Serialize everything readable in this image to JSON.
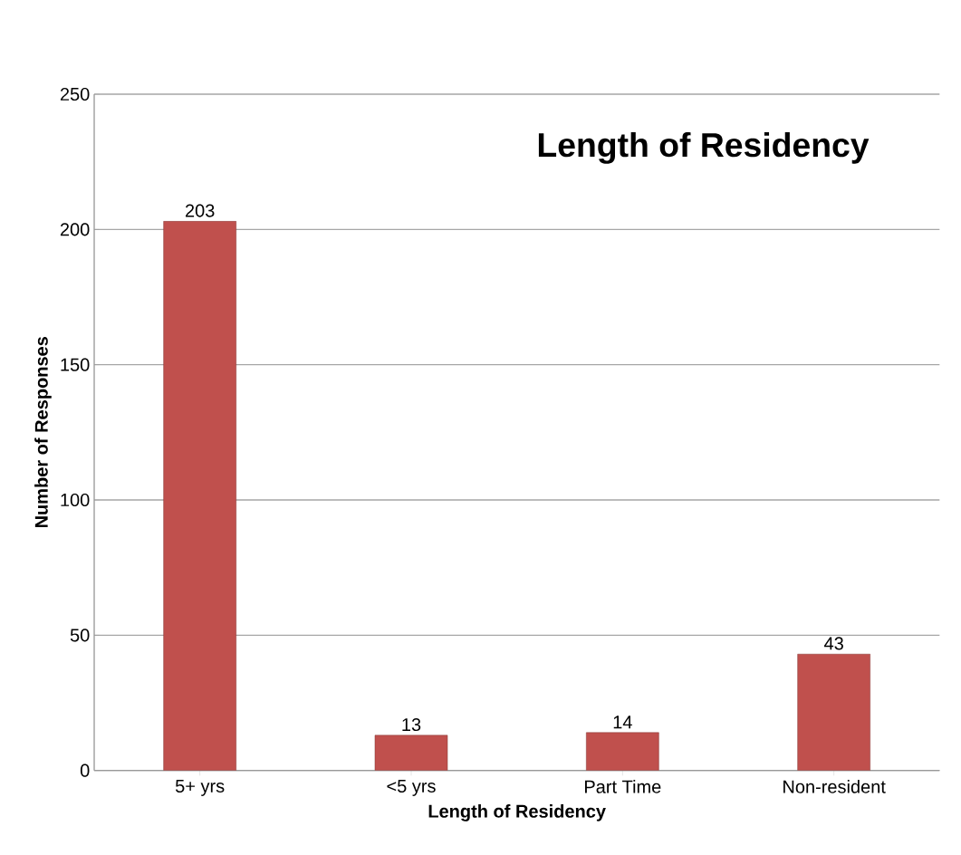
{
  "chart_data": {
    "type": "bar",
    "title": "Length of Residency",
    "xlabel": "Length of Residency",
    "ylabel": "Number of Responses",
    "categories": [
      "5+ yrs",
      "<5 yrs",
      "Part Time",
      "Non-resident"
    ],
    "values": [
      203,
      13,
      14,
      43
    ],
    "color": "#c0504d",
    "ylim": [
      0,
      250
    ],
    "yticks": [
      0,
      50,
      100,
      150,
      200,
      250
    ],
    "grid": "y",
    "data_labels": true
  }
}
